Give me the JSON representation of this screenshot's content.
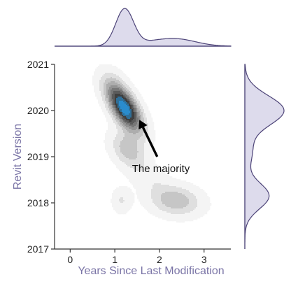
{
  "chart_data": {
    "type": "joint-kde",
    "title": "",
    "xlabel": "Years Since Last Modification",
    "ylabel": "Revit Version",
    "xlim": [
      -0.35,
      3.6
    ],
    "ylim": [
      2017,
      2021
    ],
    "x_ticks": [
      0,
      1,
      2,
      3
    ],
    "x_tick_labels": [
      "0",
      "1",
      "2",
      "3"
    ],
    "y_ticks": [
      2017,
      2018,
      2019,
      2020,
      2021
    ],
    "y_tick_labels": [
      "2017",
      "2018",
      "2019",
      "2020",
      "2021"
    ],
    "grid": false,
    "legend": "none",
    "annotation": {
      "text": "The majority",
      "arrow_from": [
        1.95,
        2019.0
      ],
      "arrow_to": [
        1.55,
        2019.8
      ]
    },
    "kde_components": [
      {
        "x": 1.22,
        "y": 2020.05,
        "sx": 0.26,
        "sy": 0.34,
        "rho": -0.62,
        "w": 1.0
      },
      {
        "x": 1.3,
        "y": 2019.15,
        "sx": 0.26,
        "sy": 0.26,
        "rho": -0.35,
        "w": 0.3
      },
      {
        "x": 2.35,
        "y": 2018.05,
        "sx": 0.38,
        "sy": 0.22,
        "rho": -0.15,
        "w": 0.32
      },
      {
        "x": 1.15,
        "y": 2018.05,
        "sx": 0.14,
        "sy": 0.18,
        "rho": 0.0,
        "w": 0.14
      },
      {
        "x": 1.75,
        "y": 2018.55,
        "sx": 0.3,
        "sy": 0.22,
        "rho": -0.4,
        "w": 0.1
      },
      {
        "x": 0.95,
        "y": 2020.55,
        "sx": 0.22,
        "sy": 0.25,
        "rho": -0.3,
        "w": 0.1
      }
    ],
    "marginal_x": [
      {
        "x": 1.22,
        "s": 0.2,
        "w": 1.0
      },
      {
        "x": 2.35,
        "s": 0.45,
        "w": 0.2
      },
      {
        "x": 1.75,
        "s": 0.3,
        "w": 0.05
      }
    ],
    "marginal_y": [
      {
        "y": 2020.0,
        "s": 0.32,
        "w": 1.0
      },
      {
        "y": 2018.15,
        "s": 0.28,
        "w": 0.62
      },
      {
        "y": 2019.1,
        "s": 0.3,
        "w": 0.18
      }
    ],
    "colors": {
      "peak": "#2a8ccd",
      "dark": "#1f1f1f",
      "light": "#f4f4f4",
      "marginal_fill": "#dddbec",
      "marginal_line": "#4d4478",
      "axis": "#333333"
    }
  }
}
